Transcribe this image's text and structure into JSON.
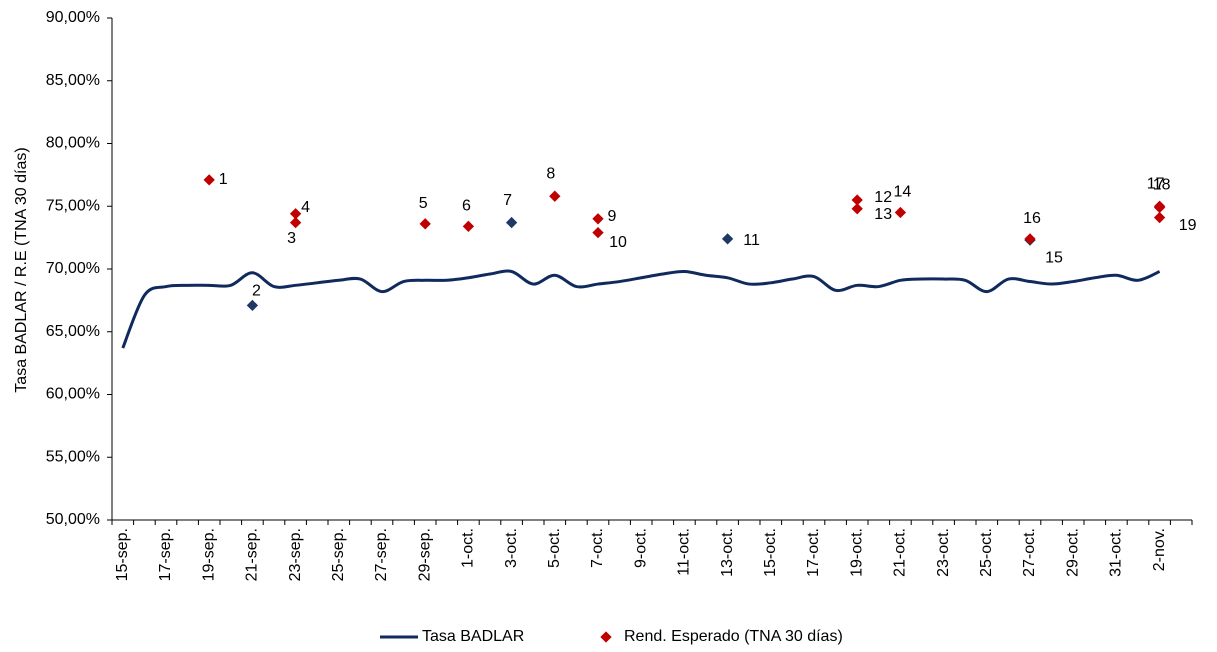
{
  "chart_data": {
    "type": "line",
    "y_label": "Tasa BADLAR / R.E (TNA 30 días)",
    "categories": [
      "15-sep.",
      null,
      "17-sep.",
      null,
      "19-sep.",
      null,
      "21-sep.",
      null,
      "23-sep.",
      null,
      "25-sep.",
      null,
      "27-sep.",
      null,
      "29-sep.",
      null,
      "1-oct.",
      null,
      "3-oct.",
      null,
      "5-oct.",
      null,
      "7-oct.",
      null,
      "9-oct.",
      null,
      "11-oct.",
      null,
      "13-oct.",
      null,
      "15-oct.",
      null,
      "17-oct.",
      null,
      "19-oct.",
      null,
      "21-oct.",
      null,
      "23-oct.",
      null,
      "25-oct.",
      null,
      "27-oct.",
      null,
      "29-oct.",
      null,
      "31-oct.",
      null,
      "2-nov.",
      null
    ],
    "ylim": [
      50,
      90
    ],
    "yticks": [
      {
        "value": 50,
        "label": "50,00%"
      },
      {
        "value": 55,
        "label": "55,00%"
      },
      {
        "value": 60,
        "label": "60,00%"
      },
      {
        "value": 65,
        "label": "65,00%"
      },
      {
        "value": 70,
        "label": "70,00%"
      },
      {
        "value": 75,
        "label": "75,00%"
      },
      {
        "value": 80,
        "label": "80,00%"
      },
      {
        "value": 85,
        "label": "85,00%"
      },
      {
        "value": 90,
        "label": "90,00%"
      }
    ],
    "series": [
      {
        "name": "Tasa BADLAR",
        "type": "line",
        "color": "#102a5e",
        "values": [
          63.7,
          67.9,
          68.6,
          68.7,
          68.7,
          68.7,
          69.7,
          68.6,
          68.7,
          68.9,
          69.1,
          69.2,
          68.2,
          69.0,
          69.1,
          69.1,
          69.3,
          69.6,
          69.8,
          68.8,
          69.5,
          68.6,
          68.8,
          69.0,
          69.3,
          69.6,
          69.8,
          69.5,
          69.3,
          68.8,
          68.9,
          69.2,
          69.4,
          68.3,
          68.7,
          68.6,
          69.1,
          69.2,
          69.2,
          69.1,
          68.2,
          69.2,
          69.0,
          68.8,
          69.0,
          69.3,
          69.5,
          69.1,
          69.8,
          null
        ]
      },
      {
        "name": "Rend. Esperado (TNA 30 días)",
        "type": "scatter",
        "color": "#c00000",
        "points": [
          {
            "label": "1",
            "date": "19-sep.",
            "value": 77.1,
            "color": "#c00000"
          },
          {
            "label": "2",
            "date": "21-sep.",
            "value": 67.1,
            "color": "#1f3864"
          },
          {
            "label": "3",
            "date": "23-sep.",
            "value": 73.7,
            "color": "#c00000"
          },
          {
            "label": "4",
            "date": "23-sep.",
            "value": 74.4,
            "color": "#c00000"
          },
          {
            "label": "5",
            "date": "29-sep.",
            "value": 73.6,
            "color": "#c00000"
          },
          {
            "label": "6",
            "date": "1-oct.",
            "value": 73.4,
            "color": "#c00000"
          },
          {
            "label": "7",
            "date": "3-oct.",
            "value": 73.7,
            "color": "#1f3864"
          },
          {
            "label": "8",
            "date": "5-oct.",
            "value": 75.8,
            "color": "#c00000"
          },
          {
            "label": "9",
            "date": "7-oct.",
            "value": 74.0,
            "color": "#c00000"
          },
          {
            "label": "10",
            "date": "7-oct.",
            "value": 72.9,
            "color": "#c00000"
          },
          {
            "label": "11",
            "date": "13-oct.",
            "value": 72.4,
            "color": "#1f3864"
          },
          {
            "label": "12",
            "date": "19-oct.",
            "value": 75.5,
            "color": "#c00000"
          },
          {
            "label": "13",
            "date": "19-oct.",
            "value": 74.8,
            "color": "#c00000"
          },
          {
            "label": "14",
            "date": "21-oct.",
            "value": 74.5,
            "color": "#c00000"
          },
          {
            "label": "15",
            "date": "27-oct.",
            "value": 72.3,
            "color": "#1f3864"
          },
          {
            "label": "16",
            "date": "27-oct.",
            "value": 72.4,
            "color": "#c00000"
          },
          {
            "label": "17",
            "date": "2-nov.",
            "value": 75.0,
            "color": "#c00000"
          },
          {
            "label": "18",
            "date": "2-nov.",
            "value": 74.9,
            "color": "#c00000"
          },
          {
            "label": "19",
            "date": "2-nov.",
            "value": 74.1,
            "color": "#c00000"
          }
        ]
      }
    ]
  }
}
